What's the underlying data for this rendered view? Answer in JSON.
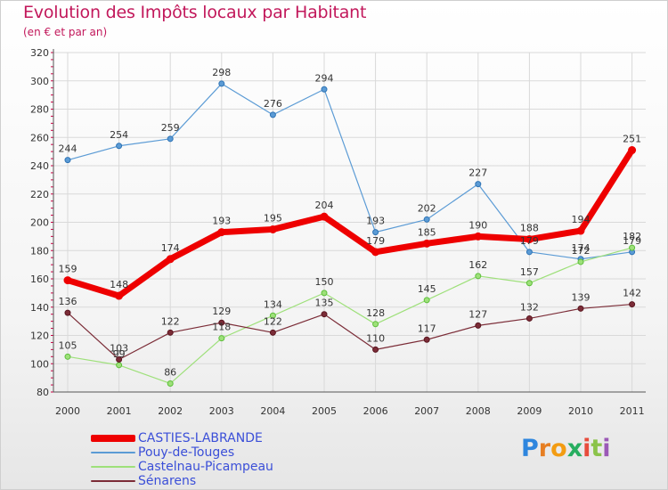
{
  "title": "Evolution des Impôts locaux par Habitant",
  "subtitle": "(en € et par an)",
  "logo": "Proxiti",
  "colors": {
    "title": "#c2185b",
    "grid": "#d9d9d9",
    "axis": "#555555",
    "tick_minor": "#cc0044",
    "logo_letters": [
      "#2e86de",
      "#e67e22",
      "#f39c12",
      "#27ae60",
      "#e74c3c",
      "#8bc34a",
      "#9b59b6"
    ]
  },
  "chart_data": {
    "type": "line",
    "x": [
      "2000",
      "2001",
      "2002",
      "2003",
      "2004",
      "2005",
      "2006",
      "2007",
      "2008",
      "2009",
      "2010",
      "2011"
    ],
    "ylim": [
      80,
      320
    ],
    "yticks": [
      80,
      100,
      120,
      140,
      160,
      180,
      200,
      220,
      240,
      260,
      280,
      300,
      320
    ],
    "grid": true,
    "legend_position": "bottom-left",
    "series": [
      {
        "name": "Pouy-de-Touges",
        "color": "#5b9bd5",
        "marker": "#2f74b5",
        "width": 1.2,
        "values": [
          244,
          254,
          259,
          298,
          276,
          294,
          193,
          202,
          227,
          179,
          174,
          179
        ],
        "labels": [
          "244",
          "254",
          "259",
          "298",
          "276",
          "294",
          "193",
          "202",
          "227",
          "179",
          "174",
          "179"
        ]
      },
      {
        "name": "Castelnau-Picampeau",
        "color": "#9ee07a",
        "marker": "#5cbf3a",
        "width": 1.2,
        "values": [
          105,
          99,
          86,
          118,
          134,
          150,
          128,
          145,
          162,
          157,
          172,
          182
        ],
        "labels": [
          "105",
          "99",
          "86",
          "118",
          "134",
          "150",
          "128",
          "145",
          "162",
          "157",
          "172",
          "182"
        ]
      },
      {
        "name": "Sénarens",
        "color": "#7b2c37",
        "marker": "#5a1620",
        "width": 1.2,
        "values": [
          136,
          103,
          122,
          129,
          122,
          135,
          110,
          117,
          127,
          132,
          139,
          142
        ],
        "labels": [
          "136",
          "103",
          "122",
          "129",
          "122",
          "135",
          "110",
          "117",
          "127",
          "132",
          "139",
          "142"
        ]
      },
      {
        "name": "CASTIES-LABRANDE",
        "color": "#ee0000",
        "marker": "#ee0000",
        "width": 7,
        "values": [
          159,
          148,
          174,
          193,
          195,
          204,
          179,
          185,
          190,
          188,
          194,
          251
        ],
        "labels": [
          "159",
          "148",
          "174",
          "193",
          "195",
          "204",
          "179",
          "185",
          "190",
          "188",
          "194",
          "251"
        ]
      }
    ],
    "legend_order": [
      "CASTIES-LABRANDE",
      "Pouy-de-Touges",
      "Castelnau-Picampeau",
      "Sénarens"
    ]
  }
}
